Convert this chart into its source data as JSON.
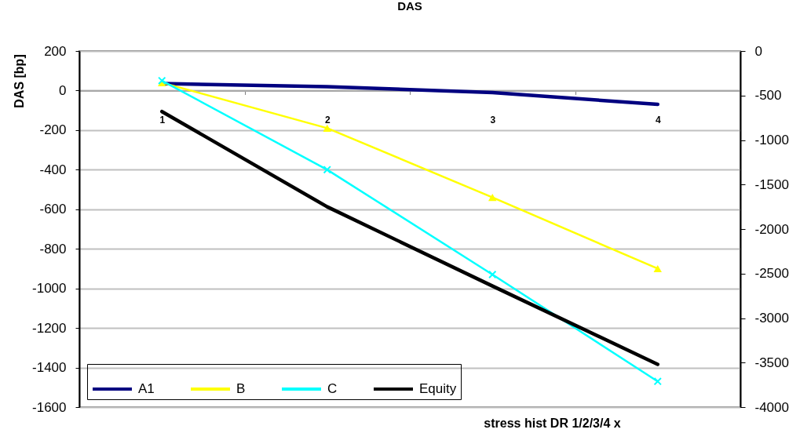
{
  "chart_data": {
    "type": "line",
    "title": "DAS",
    "xlabel": "stress hist DR 1/2/3/4 x",
    "ylabel": "DAS [bp]",
    "categories": [
      "1",
      "2",
      "3",
      "4"
    ],
    "series": [
      {
        "name": "A1",
        "color": "#000080",
        "values": [
          35,
          20,
          -10,
          -70
        ]
      },
      {
        "name": "B",
        "color": "#ffff00",
        "marker": "triangle",
        "values": [
          40,
          -190,
          -540,
          -900
        ]
      },
      {
        "name": "C",
        "color": "#00ffff",
        "marker": "cross",
        "values": [
          50,
          -400,
          -930,
          -1470
        ]
      },
      {
        "name": "Equity",
        "color": "#000000",
        "axis": "y2",
        "values": [
          -680,
          -1750,
          -2640,
          -3520
        ]
      }
    ],
    "ylim": [
      -1600,
      200
    ],
    "yticks": [
      -1600,
      -1400,
      -1200,
      -1000,
      -800,
      -600,
      -400,
      -200,
      0,
      200
    ],
    "y2lim": [
      -4000,
      0
    ],
    "y2ticks": [
      -4000,
      -3500,
      -3000,
      -2500,
      -2000,
      -1500,
      -1000,
      -500,
      0
    ],
    "grid": "y",
    "legend": "bottom left"
  }
}
